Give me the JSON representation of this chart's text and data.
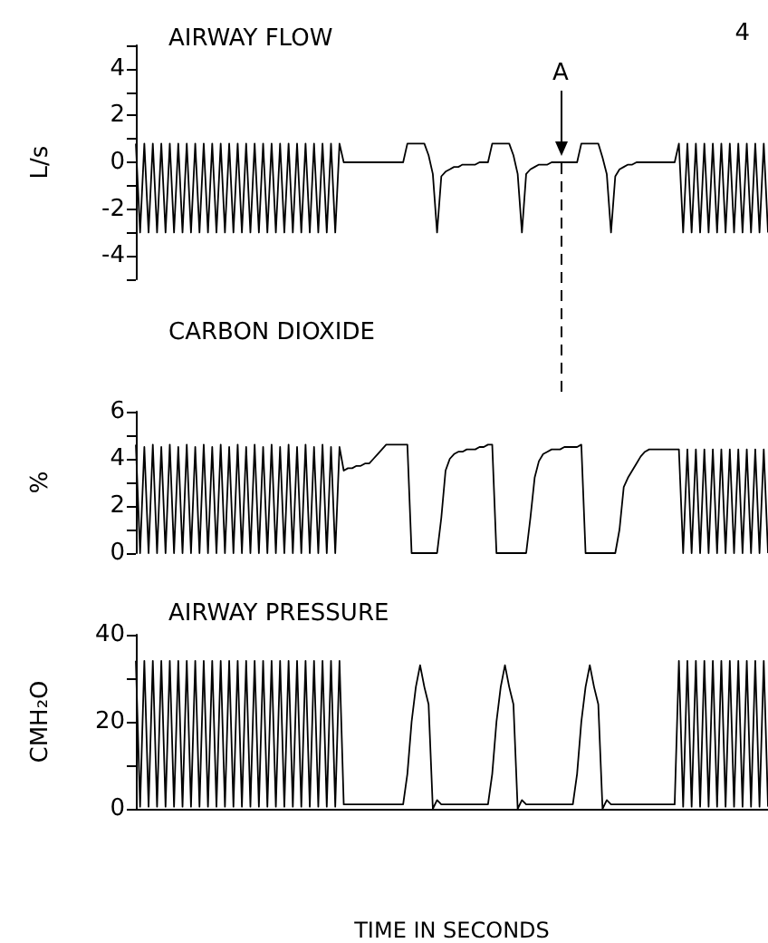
{
  "chart_data": [
    {
      "type": "line",
      "title": "AIRWAY FLOW",
      "ylabel": "L/s",
      "annotations": [
        "4",
        "A"
      ],
      "categories": [
        null,
        null,
        null,
        null,
        null,
        null,
        null,
        null,
        null,
        null,
        null,
        null,
        null,
        null,
        null,
        null,
        null,
        null,
        null,
        null,
        null,
        null,
        null,
        null,
        null,
        null,
        null,
        null,
        null,
        null,
        null,
        null,
        null,
        null,
        null,
        null,
        null,
        null,
        null,
        null,
        null,
        null,
        null,
        null,
        null,
        null,
        null,
        null,
        null,
        null,
        null,
        null,
        null,
        null,
        null,
        null,
        null,
        null,
        null,
        null,
        null,
        null,
        null,
        null,
        null,
        null,
        null,
        null,
        null,
        null,
        null,
        null,
        null,
        null,
        null,
        null,
        null,
        null,
        null,
        null,
        null,
        null,
        null,
        null,
        null,
        null,
        null,
        null,
        null,
        null,
        null,
        null,
        null,
        null,
        null,
        null,
        null,
        null,
        null,
        null,
        null,
        null,
        null,
        null,
        null,
        null,
        null,
        null,
        null,
        null,
        null,
        null,
        null,
        null,
        null,
        null,
        null,
        null,
        null,
        null,
        null,
        null,
        null,
        null,
        null,
        null,
        null,
        null,
        null,
        null,
        null,
        null,
        null,
        null,
        null,
        null,
        null,
        null,
        null,
        null,
        null,
        null,
        null,
        null,
        null,
        null,
        null,
        null,
        null,
        null
      ],
      "series": [
        {
          "color": "#000000",
          "values": [
            0.8,
            -3,
            0.8,
            -3,
            0.8,
            -3,
            0.8,
            -3,
            0.8,
            -3,
            0.8,
            -3,
            0.8,
            -3,
            0.8,
            -3,
            0.8,
            -3,
            0.8,
            -3,
            0.8,
            -3,
            0.8,
            -3,
            0.8,
            -3,
            0.8,
            -3,
            0.8,
            -3,
            0.8,
            -3,
            0.8,
            -3,
            0.8,
            -3,
            0.8,
            -3,
            0.8,
            -3,
            0.8,
            -3,
            0.8,
            -3,
            0.8,
            -3,
            0.8,
            -3,
            0.8,
            0,
            0,
            0,
            0,
            0,
            0,
            0,
            0,
            0,
            0,
            0,
            0,
            0,
            0,
            0,
            0.8,
            0.8,
            0.8,
            0.8,
            0.8,
            0.3,
            -0.5,
            -3,
            -0.6,
            -0.4,
            -0.3,
            -0.2,
            -0.2,
            -0.1,
            -0.1,
            -0.1,
            -0.1,
            0,
            0,
            0,
            0.8,
            0.8,
            0.8,
            0.8,
            0.8,
            0.3,
            -0.5,
            -3,
            -0.5,
            -0.3,
            -0.2,
            -0.1,
            -0.1,
            -0.1,
            0,
            0,
            0,
            0,
            0,
            0,
            0,
            0.8,
            0.8,
            0.8,
            0.8,
            0.8,
            0.2,
            -0.5,
            -3,
            -0.6,
            -0.3,
            -0.2,
            -0.1,
            -0.1,
            0,
            0,
            0,
            0,
            0,
            0,
            0,
            0,
            0,
            0,
            0.8,
            -3,
            0.8,
            -3,
            0.8,
            -3,
            0.8,
            -3,
            0.8,
            -3,
            0.8,
            -3,
            0.8,
            -3,
            0.8,
            -3,
            0.8,
            -3,
            0.8,
            -3,
            0.8,
            -3
          ]
        }
      ],
      "ylim": [
        -5,
        5
      ],
      "yticks": [
        {
          "value": -5,
          "label": null
        },
        -4,
        {
          "value": -3,
          "label": null
        },
        -2,
        {
          "value": -1,
          "label": null
        },
        0,
        {
          "value": 1,
          "label": null
        },
        2,
        {
          "value": 3,
          "label": null
        },
        4,
        {
          "value": 5,
          "label": null
        }
      ],
      "tick_labels": "y",
      "grid": false,
      "line_style": "solid"
    },
    {
      "type": "line",
      "title": "CARBON DIOXIDE",
      "ylabel": "%",
      "categories": [
        null,
        null,
        null,
        null,
        null,
        null,
        null,
        null,
        null,
        null,
        null,
        null,
        null,
        null,
        null,
        null,
        null,
        null,
        null,
        null,
        null,
        null,
        null,
        null,
        null,
        null,
        null,
        null,
        null,
        null,
        null,
        null,
        null,
        null,
        null,
        null,
        null,
        null,
        null,
        null,
        null,
        null,
        null,
        null,
        null,
        null,
        null,
        null,
        null,
        null,
        null,
        null,
        null,
        null,
        null,
        null,
        null,
        null,
        null,
        null,
        null,
        null,
        null,
        null,
        null,
        null,
        null,
        null,
        null,
        null,
        null,
        null,
        null,
        null,
        null,
        null,
        null,
        null,
        null,
        null,
        null,
        null,
        null,
        null,
        null,
        null,
        null,
        null,
        null,
        null,
        null,
        null,
        null,
        null,
        null,
        null,
        null,
        null,
        null,
        null,
        null,
        null,
        null,
        null,
        null,
        null,
        null,
        null,
        null,
        null,
        null,
        null,
        null,
        null,
        null,
        null,
        null,
        null,
        null,
        null,
        null,
        null,
        null,
        null,
        null,
        null,
        null,
        null,
        null,
        null,
        null,
        null,
        null,
        null,
        null,
        null,
        null,
        null,
        null,
        null,
        null,
        null,
        null,
        null,
        null,
        null,
        null,
        null,
        null,
        null
      ],
      "series": [
        {
          "color": "#000000",
          "values": [
            4.6,
            0,
            4.5,
            0,
            4.6,
            0,
            4.5,
            0,
            4.6,
            0,
            4.5,
            0,
            4.6,
            0,
            4.5,
            0,
            4.6,
            0,
            4.5,
            0,
            4.6,
            0,
            4.5,
            0,
            4.6,
            0,
            4.5,
            0,
            4.6,
            0,
            4.5,
            0,
            4.6,
            0,
            4.5,
            0,
            4.6,
            0,
            4.5,
            0,
            4.6,
            0,
            4.5,
            0,
            4.6,
            0,
            4.5,
            0,
            4.5,
            3.5,
            3.6,
            3.6,
            3.7,
            3.7,
            3.8,
            3.8,
            4.0,
            4.2,
            4.4,
            4.6,
            4.6,
            4.6,
            4.6,
            4.6,
            4.6,
            0,
            0,
            0,
            0,
            0,
            0,
            0,
            1.5,
            3.5,
            4.0,
            4.2,
            4.3,
            4.3,
            4.4,
            4.4,
            4.4,
            4.5,
            4.5,
            4.6,
            4.6,
            0,
            0,
            0,
            0,
            0,
            0,
            0,
            0,
            1.5,
            3.2,
            3.9,
            4.2,
            4.3,
            4.4,
            4.4,
            4.4,
            4.5,
            4.5,
            4.5,
            4.5,
            4.6,
            0,
            0,
            0,
            0,
            0,
            0,
            0,
            0,
            1.0,
            2.8,
            3.2,
            3.5,
            3.8,
            4.1,
            4.3,
            4.4,
            4.4,
            4.4,
            4.4,
            4.4,
            4.4,
            4.4,
            4.4,
            0,
            4.4,
            0,
            4.4,
            0,
            4.4,
            0,
            4.4,
            0,
            4.4,
            0,
            4.4,
            0,
            4.4,
            0,
            4.4,
            0,
            4.4,
            0,
            4.4,
            0
          ]
        }
      ],
      "ylim": [
        0,
        6
      ],
      "yticks": [
        0,
        {
          "value": 1,
          "label": null
        },
        2,
        {
          "value": 3,
          "label": null
        },
        4,
        {
          "value": 5,
          "label": null
        },
        6
      ],
      "tick_labels": "y",
      "grid": false,
      "line_style": "solid"
    },
    {
      "type": "line",
      "title": "AIRWAY PRESSURE",
      "ylabel": "CMH₂O",
      "xlabel": "TIME IN SECONDS",
      "categories": [
        null,
        null,
        null,
        null,
        null,
        null,
        null,
        null,
        null,
        null,
        null,
        null,
        null,
        null,
        null,
        null,
        null,
        null,
        null,
        null,
        null,
        null,
        null,
        null,
        null,
        null,
        null,
        null,
        null,
        null,
        null,
        null,
        null,
        null,
        null,
        null,
        null,
        null,
        null,
        null,
        null,
        null,
        null,
        null,
        null,
        null,
        null,
        null,
        null,
        null,
        null,
        null,
        null,
        null,
        null,
        null,
        null,
        null,
        null,
        null,
        null,
        null,
        null,
        null,
        null,
        null,
        null,
        null,
        null,
        null,
        null,
        null,
        null,
        null,
        null,
        null,
        null,
        null,
        null,
        null,
        null,
        null,
        null,
        null,
        null,
        null,
        null,
        null,
        null,
        null,
        null,
        null,
        null,
        null,
        null,
        null,
        null,
        null,
        null,
        null,
        null,
        null,
        null,
        null,
        null,
        null,
        null,
        null,
        null,
        null,
        null,
        null,
        null,
        null,
        null,
        null,
        null,
        null,
        null,
        null,
        null,
        null,
        null,
        null,
        null,
        null,
        null,
        null,
        null,
        null,
        null,
        null,
        null,
        null,
        null,
        null,
        null,
        null,
        null,
        null,
        null,
        null,
        null,
        null,
        null,
        null,
        null,
        null,
        null,
        null
      ],
      "series": [
        {
          "color": "#000000",
          "values": [
            34,
            0.5,
            34,
            0.5,
            34,
            0.5,
            34,
            0.5,
            34,
            0.5,
            34,
            0.5,
            34,
            0.5,
            34,
            0.5,
            34,
            0.5,
            34,
            0.5,
            34,
            0.5,
            34,
            0.5,
            34,
            0.5,
            34,
            0.5,
            34,
            0.5,
            34,
            0.5,
            34,
            0.5,
            34,
            0.5,
            34,
            0.5,
            34,
            0.5,
            34,
            0.5,
            34,
            0.5,
            34,
            0.5,
            34,
            0.5,
            34,
            1,
            1,
            1,
            1,
            1,
            1,
            1,
            1,
            1,
            1,
            1,
            1,
            1,
            1,
            1,
            8,
            20,
            28,
            33,
            28,
            24,
            0,
            2,
            1,
            1,
            1,
            1,
            1,
            1,
            1,
            1,
            1,
            1,
            1,
            1,
            8,
            20,
            28,
            33,
            28,
            24,
            0,
            2,
            1,
            1,
            1,
            1,
            1,
            1,
            1,
            1,
            1,
            1,
            1,
            1,
            8,
            20,
            28,
            33,
            28,
            24,
            0,
            2,
            1,
            1,
            1,
            1,
            1,
            1,
            1,
            1,
            1,
            1,
            1,
            1,
            1,
            1,
            1,
            1,
            34,
            0.5,
            34,
            0.5,
            34,
            0.5,
            34,
            0.5,
            34,
            0.5,
            34,
            0.5,
            34,
            0.5,
            34,
            0.5,
            34,
            0.5,
            34,
            0.5,
            34,
            0.5
          ]
        }
      ],
      "ylim": [
        0,
        40
      ],
      "yticks": [
        0,
        {
          "value": 10,
          "label": null
        },
        20,
        {
          "value": 30,
          "label": null
        },
        40
      ],
      "tick_labels": "y",
      "grid": false,
      "line_style": "solid"
    }
  ]
}
